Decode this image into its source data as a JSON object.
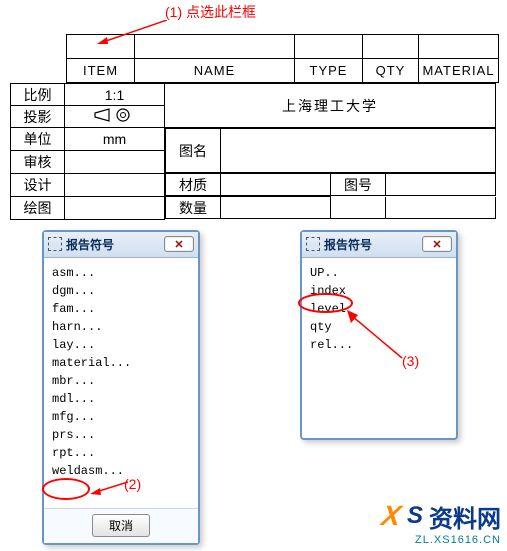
{
  "annotation": {
    "a1": "(1) 点选此栏框",
    "a2": "(2)",
    "a3": "(3)"
  },
  "colors": {
    "annotation": "#ff0000",
    "dialog_border": "#6995c8",
    "title_grad_top": "#e9eff7",
    "title_grad_bot": "#cfdff0",
    "title_text": "#0b2d5a",
    "logo_blue": "#0a3a8a",
    "logo_orange": "#ff8a00",
    "logo_url": "#008191"
  },
  "parts_header": {
    "c1": "ITEM",
    "c2": "NAME",
    "c3": "TYPE",
    "c4": "QTY",
    "c5": "MATERIAL"
  },
  "title_block": {
    "r1c1": "比例",
    "r1c2": "1:1",
    "r1c3": "上海理工大学",
    "r2c1": "投影",
    "r3c1": "单位",
    "r3c2": "mm",
    "r3lbl": "图名",
    "r4c1": "审核",
    "r5c1": "设计",
    "r5lbl": "材质",
    "r5r": "图号",
    "r6c1": "绘图",
    "r6lbl": "数量"
  },
  "dialog": {
    "title": "报告符号",
    "close": "✕",
    "cancel": "取消",
    "left_items": [
      "asm...",
      "dgm...",
      "fam...",
      "harn...",
      "lay...",
      "material...",
      "mbr...",
      "mdl...",
      "mfg...",
      "prs...",
      "rpt...",
      "weldasm..."
    ],
    "right_items": [
      "UP..",
      "index",
      "level",
      "qty",
      "rel..."
    ]
  },
  "logo": {
    "x": "X",
    "s": "S",
    "name": "资料网",
    "url": "ZL.XS1616.CN"
  }
}
